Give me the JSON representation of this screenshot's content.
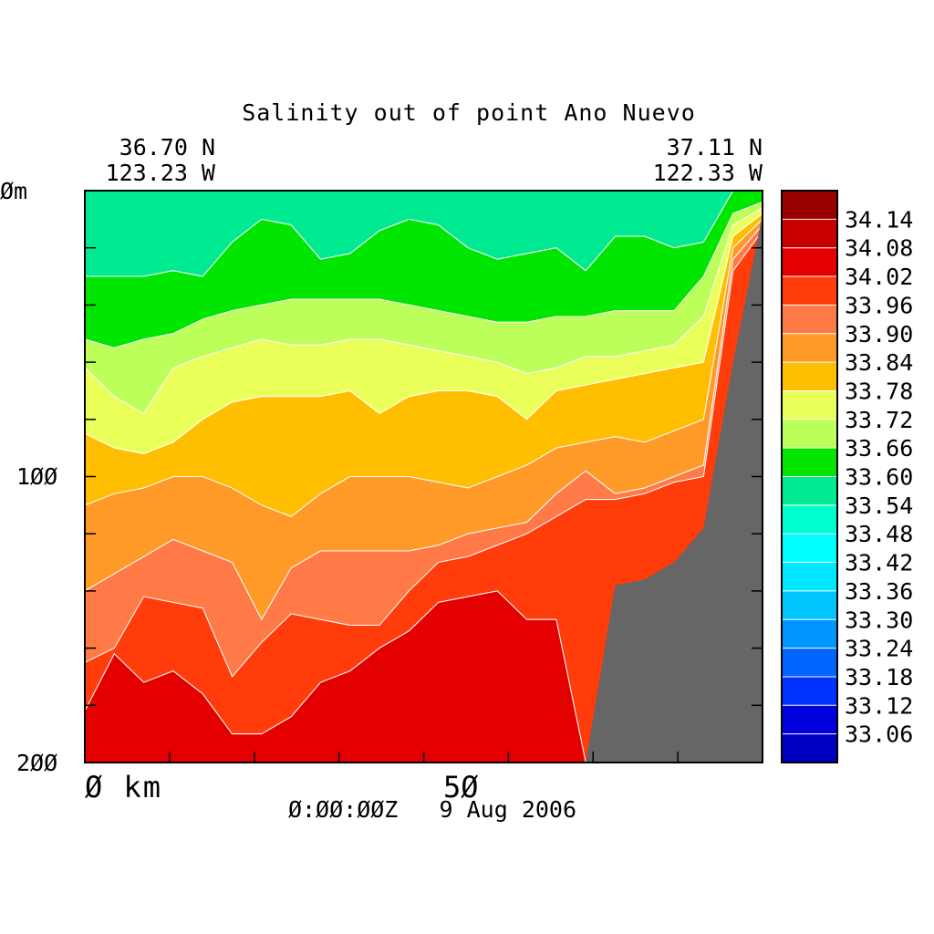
{
  "chart_data": {
    "type": "heatmap",
    "title": "Salinity out of point Ano Nuevo",
    "start_location": {
      "lat": "36.70 N",
      "lon": "123.23 W"
    },
    "end_location": {
      "lat": "37.11 N",
      "lon": "122.33 W"
    },
    "x_axis": {
      "range": [
        0,
        80
      ],
      "unit_label": "km",
      "tick_labels": [
        "Ø km",
        "5Ø"
      ],
      "tick_values": [
        0,
        50
      ]
    },
    "y_axis": {
      "range": [
        0,
        200
      ],
      "unit_label": "m",
      "inverted": true,
      "tick_labels": [
        "Øm",
        "1ØØ",
        "2ØØ"
      ],
      "tick_values": [
        0,
        100,
        200
      ]
    },
    "timestamp": "Ø:ØØ:ØØZ   9 Aug 2006",
    "colorbar": {
      "levels": [
        "34.14",
        "34.08",
        "34.02",
        "33.96",
        "33.90",
        "33.84",
        "33.78",
        "33.72",
        "33.66",
        "33.60",
        "33.54",
        "33.48",
        "33.42",
        "33.36",
        "33.30",
        "33.24",
        "33.18",
        "33.12",
        "33.06"
      ],
      "colors": [
        "#990000",
        "#c80000",
        "#e40000",
        "#ff3c0a",
        "#ff7a46",
        "#ff9a28",
        "#ffbe00",
        "#ebff5a",
        "#bcff5a",
        "#00e600",
        "#00eb91",
        "#00ffd0",
        "#00ffff",
        "#00e8ff",
        "#00c8ff",
        "#0096ff",
        "#0064ff",
        "#0032ff",
        "#0000dc"
      ]
    },
    "bathymetry_color": "#666666",
    "bands": [
      {
        "salinity_range": [
          33.54,
          33.6
        ],
        "color": "#00eb91",
        "depth_top_m": [
          0,
          0,
          0,
          0,
          0,
          0,
          0,
          0,
          0,
          0,
          0,
          0,
          0,
          0,
          0,
          0,
          0,
          0,
          0,
          0,
          0,
          0,
          0,
          0
        ],
        "depth_bottom_m": [
          30,
          30,
          30,
          28,
          30,
          18,
          10,
          12,
          24,
          22,
          14,
          10,
          12,
          20,
          24,
          22,
          20,
          28,
          16,
          16,
          20,
          18,
          0,
          0
        ]
      },
      {
        "salinity_range": [
          33.6,
          33.66
        ],
        "color": "#00e600",
        "depth_top_m": [
          30,
          30,
          30,
          28,
          30,
          18,
          10,
          12,
          24,
          22,
          14,
          10,
          12,
          20,
          24,
          22,
          20,
          28,
          16,
          16,
          20,
          18,
          0,
          0
        ],
        "depth_bottom_m": [
          52,
          55,
          52,
          50,
          45,
          42,
          40,
          38,
          38,
          38,
          38,
          40,
          42,
          44,
          46,
          46,
          44,
          44,
          42,
          42,
          42,
          30,
          8,
          4
        ]
      },
      {
        "salinity_range": [
          33.66,
          33.72
        ],
        "color": "#bcff5a",
        "depth_top_m": [
          52,
          55,
          52,
          50,
          45,
          42,
          40,
          38,
          38,
          38,
          38,
          40,
          42,
          44,
          46,
          46,
          44,
          44,
          42,
          42,
          42,
          30,
          8,
          4
        ],
        "depth_bottom_m": [
          62,
          72,
          78,
          62,
          58,
          55,
          52,
          54,
          54,
          52,
          52,
          54,
          56,
          58,
          60,
          64,
          62,
          58,
          58,
          56,
          54,
          44,
          12,
          6
        ]
      },
      {
        "salinity_range": [
          33.72,
          33.78
        ],
        "color": "#ebff5a",
        "depth_top_m": [
          62,
          72,
          78,
          62,
          58,
          55,
          52,
          54,
          54,
          52,
          52,
          54,
          56,
          58,
          60,
          64,
          62,
          58,
          58,
          56,
          54,
          44,
          12,
          6
        ],
        "depth_bottom_m": [
          85,
          90,
          92,
          88,
          80,
          74,
          72,
          72,
          72,
          70,
          78,
          72,
          70,
          70,
          72,
          80,
          70,
          68,
          66,
          64,
          62,
          60,
          16,
          8
        ]
      },
      {
        "salinity_range": [
          33.78,
          33.84
        ],
        "color": "#ffbe00",
        "depth_top_m": [
          85,
          90,
          92,
          88,
          80,
          74,
          72,
          72,
          72,
          70,
          78,
          72,
          70,
          70,
          72,
          80,
          70,
          68,
          66,
          64,
          62,
          60,
          16,
          8
        ],
        "depth_bottom_m": [
          110,
          106,
          104,
          100,
          100,
          104,
          110,
          114,
          106,
          100,
          100,
          100,
          102,
          104,
          100,
          96,
          90,
          88,
          86,
          88,
          84,
          80,
          20,
          10
        ]
      },
      {
        "salinity_range": [
          33.84,
          33.9
        ],
        "color": "#ff9a28",
        "depth_top_m": [
          110,
          106,
          104,
          100,
          100,
          104,
          110,
          114,
          106,
          100,
          100,
          100,
          102,
          104,
          100,
          96,
          90,
          88,
          86,
          88,
          84,
          80,
          20,
          10
        ],
        "depth_bottom_m": [
          140,
          134,
          128,
          122,
          126,
          130,
          150,
          132,
          126,
          126,
          126,
          126,
          124,
          120,
          118,
          116,
          106,
          98,
          106,
          104,
          100,
          96,
          24,
          12
        ]
      },
      {
        "salinity_range": [
          33.9,
          33.96
        ],
        "color": "#ff7a46",
        "depth_top_m": [
          140,
          134,
          128,
          122,
          126,
          130,
          150,
          132,
          126,
          126,
          126,
          126,
          124,
          120,
          118,
          116,
          106,
          98,
          106,
          104,
          100,
          96,
          24,
          12
        ],
        "depth_bottom_m": [
          165,
          160,
          142,
          144,
          146,
          170,
          158,
          148,
          150,
          152,
          152,
          140,
          130,
          128,
          124,
          120,
          114,
          108,
          108,
          106,
          102,
          100,
          28,
          14
        ]
      },
      {
        "salinity_range": [
          33.96,
          34.02
        ],
        "color": "#ff3c0a",
        "depth_top_m": [
          165,
          160,
          142,
          144,
          146,
          170,
          158,
          148,
          150,
          152,
          152,
          140,
          130,
          128,
          124,
          120,
          114,
          108,
          108,
          106,
          102,
          100,
          28,
          14
        ],
        "depth_bottom_m": [
          182,
          162,
          172,
          168,
          176,
          190,
          190,
          184,
          172,
          168,
          160,
          154,
          144,
          142,
          140,
          150,
          150,
          200,
          200,
          200,
          200,
          200,
          200,
          200
        ]
      },
      {
        "salinity_range": [
          34.02,
          34.08
        ],
        "color": "#e40000",
        "depth_top_m": [
          182,
          162,
          172,
          168,
          176,
          190,
          190,
          184,
          172,
          168,
          160,
          154,
          144,
          142,
          140,
          150,
          150,
          200,
          200,
          200,
          200,
          200,
          200,
          200
        ],
        "depth_bottom_m": [
          200,
          200,
          200,
          200,
          200,
          200,
          200,
          200,
          200,
          200,
          200,
          200,
          200,
          200,
          200,
          200,
          200,
          200,
          200,
          200,
          200,
          200,
          200,
          200
        ]
      }
    ],
    "bathymetry_top_m": [
      200,
      200,
      200,
      200,
      200,
      200,
      200,
      200,
      200,
      200,
      200,
      200,
      200,
      200,
      200,
      200,
      200,
      200,
      138,
      136,
      130,
      118,
      60,
      8
    ]
  }
}
